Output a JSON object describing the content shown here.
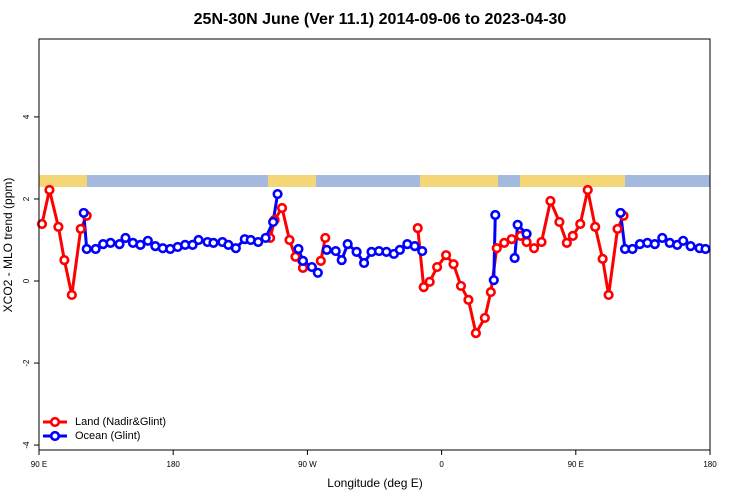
{
  "chart_data": {
    "type": "line",
    "title": "25N-30N June (Ver 11.1)   2014-09-06 to 2023-04-30",
    "x_label": "Longitude (deg E)",
    "y_label": "XCO2 - MLO trend (ppm)",
    "xlim": [
      90,
      540
    ],
    "ylim": [
      -4.12,
      5.9
    ],
    "xticks": [
      {
        "value": 90,
        "label": "90 E"
      },
      180,
      {
        "value": 270,
        "label": "90 W"
      },
      {
        "value": 360,
        "label": "0"
      },
      {
        "value": 450,
        "label": "90 E"
      },
      {
        "value": 540,
        "label": "180"
      }
    ],
    "yticks": [
      4,
      2,
      0,
      -2,
      -4
    ],
    "legend": "bottom-left",
    "series": [
      {
        "name": "Land (Nadir&Glint)",
        "color": "#ff0000",
        "x": [
          92,
          97,
          103,
          107,
          112,
          118,
          122,
          null,
          245,
          248,
          253,
          258,
          262,
          267,
          null,
          279,
          282,
          null,
          344,
          348,
          352,
          357,
          363,
          368,
          373,
          378,
          383,
          389,
          393,
          397,
          402,
          407,
          413,
          417,
          422,
          427,
          433,
          439,
          444,
          448,
          453,
          458,
          463,
          468,
          472,
          478,
          482
        ],
        "values": [
          1.39,
          2.22,
          1.32,
          0.51,
          -0.34,
          1.27,
          1.59,
          null,
          1.05,
          1.49,
          1.78,
          1.0,
          0.59,
          0.32,
          null,
          0.49,
          1.05,
          null,
          1.29,
          -0.15,
          -0.02,
          0.34,
          0.63,
          0.41,
          -0.12,
          -0.46,
          -1.27,
          -0.9,
          -0.27,
          0.8,
          0.93,
          1.02,
          1.1,
          0.95,
          0.8,
          0.95,
          1.95,
          1.44,
          0.93,
          1.1,
          1.39,
          2.22,
          1.32,
          0.54,
          -0.34,
          1.27,
          1.59
        ]
      },
      {
        "name": "Ocean (Glint)",
        "color": "#0000ff",
        "x": [
          120,
          122,
          128,
          133,
          138,
          144,
          148,
          153,
          158,
          163,
          168,
          173,
          178,
          183,
          188,
          193,
          197,
          203,
          207,
          213,
          217,
          222,
          228,
          232,
          237,
          242,
          247,
          250,
          null,
          264,
          267,
          273,
          277,
          null,
          283,
          289,
          293,
          297,
          303,
          308,
          313,
          318,
          323,
          328,
          332,
          337,
          342,
          347,
          null,
          395,
          396,
          null,
          409,
          411,
          417,
          null,
          480,
          483,
          488,
          493,
          498,
          503,
          508,
          513,
          518,
          522,
          527,
          533,
          537
        ],
        "values": [
          1.66,
          0.78,
          0.78,
          0.9,
          0.93,
          0.9,
          1.05,
          0.93,
          0.88,
          0.98,
          0.85,
          0.8,
          0.78,
          0.83,
          0.88,
          0.88,
          1.0,
          0.95,
          0.93,
          0.95,
          0.88,
          0.8,
          1.02,
          1.0,
          0.95,
          1.05,
          1.44,
          2.12,
          null,
          0.78,
          0.49,
          0.34,
          0.2,
          null,
          0.76,
          0.73,
          0.51,
          0.9,
          0.71,
          0.44,
          0.71,
          0.73,
          0.71,
          0.66,
          0.76,
          0.9,
          0.85,
          0.73,
          null,
          0.02,
          1.61,
          null,
          0.56,
          1.37,
          1.15,
          null,
          1.66,
          0.78,
          0.78,
          0.9,
          0.93,
          0.9,
          1.05,
          0.93,
          0.88,
          0.98,
          0.85,
          0.8,
          0.78
        ]
      }
    ]
  }
}
